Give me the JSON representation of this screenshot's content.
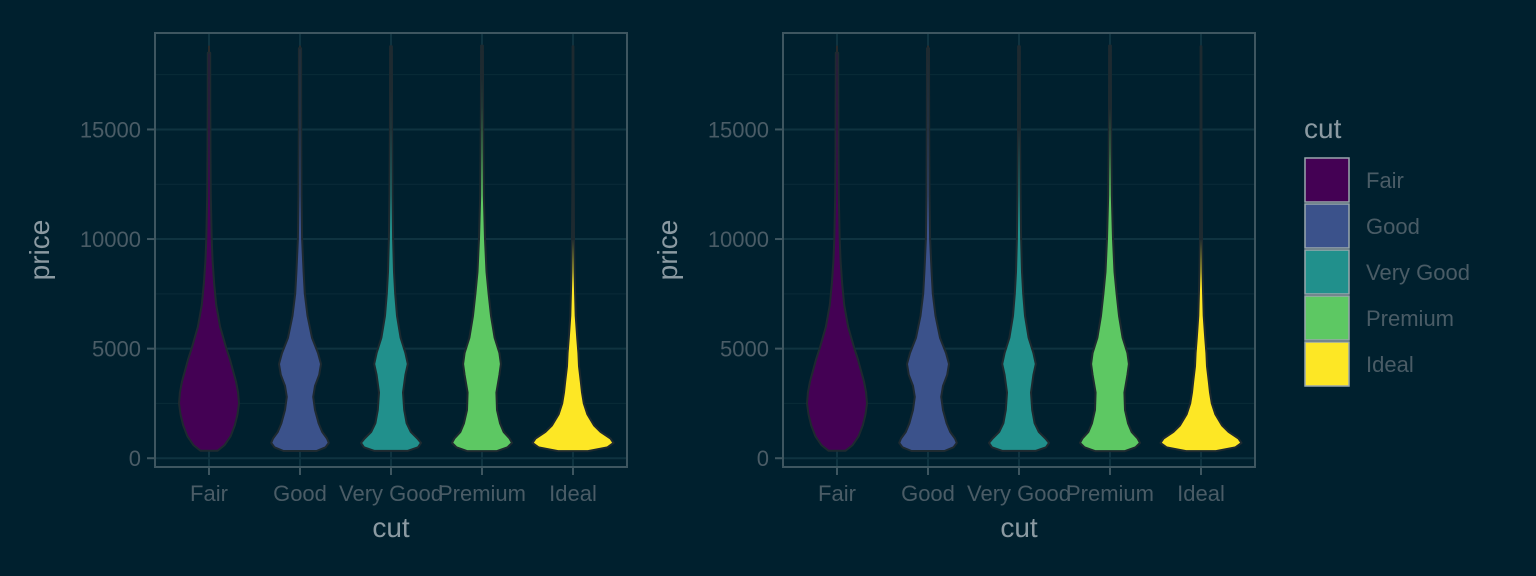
{
  "chart_data": [
    {
      "type": "violin",
      "xlabel": "cut",
      "ylabel": "price",
      "categories": [
        "Fair",
        "Good",
        "Very Good",
        "Premium",
        "Ideal"
      ],
      "colors": [
        "#440154",
        "#3b528b",
        "#21908c",
        "#5dc863",
        "#fde725"
      ],
      "ylim": [
        -400,
        19400
      ],
      "yticks": [
        0,
        5000,
        10000,
        15000
      ],
      "price_range": [
        326,
        18823
      ],
      "grid": true,
      "violins": [
        {
          "category": "Fair",
          "profile": [
            [
              340,
              0.28
            ],
            [
              600,
              0.52
            ],
            [
              1000,
              0.72
            ],
            [
              1500,
              0.86
            ],
            [
              2000,
              0.95
            ],
            [
              2500,
              1.0
            ],
            [
              3000,
              0.97
            ],
            [
              3500,
              0.9
            ],
            [
              4000,
              0.8
            ],
            [
              4500,
              0.7
            ],
            [
              5000,
              0.58
            ],
            [
              6000,
              0.37
            ],
            [
              7000,
              0.24
            ],
            [
              8000,
              0.17
            ],
            [
              9000,
              0.12
            ],
            [
              10000,
              0.09
            ],
            [
              12000,
              0.06
            ],
            [
              14000,
              0.05
            ],
            [
              16000,
              0.045
            ],
            [
              18500,
              0.04
            ]
          ]
        },
        {
          "category": "Good",
          "profile": [
            [
              330,
              0.55
            ],
            [
              500,
              0.85
            ],
            [
              700,
              0.96
            ],
            [
              900,
              0.9
            ],
            [
              1200,
              0.74
            ],
            [
              1600,
              0.62
            ],
            [
              2200,
              0.5
            ],
            [
              2800,
              0.44
            ],
            [
              3300,
              0.5
            ],
            [
              3800,
              0.64
            ],
            [
              4300,
              0.7
            ],
            [
              4800,
              0.6
            ],
            [
              5500,
              0.4
            ],
            [
              6500,
              0.25
            ],
            [
              7500,
              0.16
            ],
            [
              8500,
              0.12
            ],
            [
              10000,
              0.07
            ],
            [
              12000,
              0.05
            ],
            [
              15000,
              0.04
            ],
            [
              18700,
              0.035
            ]
          ]
        },
        {
          "category": "Very Good",
          "profile": [
            [
              336,
              0.55
            ],
            [
              500,
              0.9
            ],
            [
              700,
              1.0
            ],
            [
              900,
              0.88
            ],
            [
              1200,
              0.66
            ],
            [
              1600,
              0.52
            ],
            [
              2200,
              0.44
            ],
            [
              3000,
              0.4
            ],
            [
              3800,
              0.48
            ],
            [
              4300,
              0.56
            ],
            [
              4800,
              0.48
            ],
            [
              5500,
              0.32
            ],
            [
              6500,
              0.2
            ],
            [
              7500,
              0.14
            ],
            [
              8500,
              0.1
            ],
            [
              10000,
              0.07
            ],
            [
              12000,
              0.05
            ],
            [
              15000,
              0.035
            ],
            [
              18800,
              0.03
            ]
          ]
        },
        {
          "category": "Premium",
          "profile": [
            [
              326,
              0.5
            ],
            [
              500,
              0.85
            ],
            [
              700,
              1.0
            ],
            [
              900,
              0.92
            ],
            [
              1200,
              0.72
            ],
            [
              1600,
              0.6
            ],
            [
              2200,
              0.5
            ],
            [
              3000,
              0.48
            ],
            [
              3800,
              0.58
            ],
            [
              4300,
              0.63
            ],
            [
              4800,
              0.58
            ],
            [
              5500,
              0.42
            ],
            [
              6500,
              0.3
            ],
            [
              7500,
              0.22
            ],
            [
              8500,
              0.15
            ],
            [
              10000,
              0.1
            ],
            [
              12000,
              0.06
            ],
            [
              14000,
              0.045
            ],
            [
              16000,
              0.035
            ],
            [
              18823,
              0.03
            ]
          ]
        },
        {
          "category": "Ideal",
          "profile": [
            [
              326,
              0.5
            ],
            [
              500,
              1.15
            ],
            [
              700,
              1.35
            ],
            [
              900,
              1.25
            ],
            [
              1200,
              0.92
            ],
            [
              1500,
              0.7
            ],
            [
              2000,
              0.48
            ],
            [
              2500,
              0.36
            ],
            [
              3000,
              0.3
            ],
            [
              3500,
              0.26
            ],
            [
              4200,
              0.2
            ],
            [
              4800,
              0.18
            ],
            [
              5500,
              0.14
            ],
            [
              6500,
              0.09
            ],
            [
              7500,
              0.07
            ],
            [
              8500,
              0.05
            ],
            [
              10000,
              0.035
            ],
            [
              12000,
              0.025
            ],
            [
              15000,
              0.015
            ],
            [
              18800,
              0.012
            ]
          ]
        }
      ]
    },
    {
      "type": "violin",
      "xlabel": "cut",
      "ylabel": "price",
      "categories": [
        "Fair",
        "Good",
        "Very Good",
        "Premium",
        "Ideal"
      ],
      "colors": [
        "#440154",
        "#3b528b",
        "#21908c",
        "#5dc863",
        "#fde725"
      ],
      "ylim": [
        -400,
        19400
      ],
      "yticks": [
        0,
        5000,
        10000,
        15000
      ],
      "price_range": [
        326,
        18823
      ],
      "grid": true,
      "violins": [
        {
          "category": "Fair",
          "profile": [
            [
              340,
              0.28
            ],
            [
              600,
              0.52
            ],
            [
              1000,
              0.72
            ],
            [
              1500,
              0.86
            ],
            [
              2000,
              0.95
            ],
            [
              2500,
              1.0
            ],
            [
              3000,
              0.97
            ],
            [
              3500,
              0.9
            ],
            [
              4000,
              0.8
            ],
            [
              4500,
              0.7
            ],
            [
              5000,
              0.58
            ],
            [
              6000,
              0.37
            ],
            [
              7000,
              0.24
            ],
            [
              8000,
              0.17
            ],
            [
              9000,
              0.12
            ],
            [
              10000,
              0.09
            ],
            [
              12000,
              0.06
            ],
            [
              14000,
              0.05
            ],
            [
              16000,
              0.045
            ],
            [
              18500,
              0.04
            ]
          ]
        },
        {
          "category": "Good",
          "profile": [
            [
              330,
              0.55
            ],
            [
              500,
              0.85
            ],
            [
              700,
              0.96
            ],
            [
              900,
              0.9
            ],
            [
              1200,
              0.74
            ],
            [
              1600,
              0.62
            ],
            [
              2200,
              0.5
            ],
            [
              2800,
              0.44
            ],
            [
              3300,
              0.5
            ],
            [
              3800,
              0.64
            ],
            [
              4300,
              0.7
            ],
            [
              4800,
              0.6
            ],
            [
              5500,
              0.4
            ],
            [
              6500,
              0.25
            ],
            [
              7500,
              0.16
            ],
            [
              8500,
              0.12
            ],
            [
              10000,
              0.07
            ],
            [
              12000,
              0.05
            ],
            [
              15000,
              0.04
            ],
            [
              18700,
              0.035
            ]
          ]
        },
        {
          "category": "Very Good",
          "profile": [
            [
              336,
              0.55
            ],
            [
              500,
              0.9
            ],
            [
              700,
              1.0
            ],
            [
              900,
              0.88
            ],
            [
              1200,
              0.66
            ],
            [
              1600,
              0.52
            ],
            [
              2200,
              0.44
            ],
            [
              3000,
              0.4
            ],
            [
              3800,
              0.48
            ],
            [
              4300,
              0.56
            ],
            [
              4800,
              0.48
            ],
            [
              5500,
              0.32
            ],
            [
              6500,
              0.2
            ],
            [
              7500,
              0.14
            ],
            [
              8500,
              0.1
            ],
            [
              10000,
              0.07
            ],
            [
              12000,
              0.05
            ],
            [
              15000,
              0.035
            ],
            [
              18800,
              0.03
            ]
          ]
        },
        {
          "category": "Premium",
          "profile": [
            [
              326,
              0.5
            ],
            [
              500,
              0.85
            ],
            [
              700,
              1.0
            ],
            [
              900,
              0.92
            ],
            [
              1200,
              0.72
            ],
            [
              1600,
              0.6
            ],
            [
              2200,
              0.5
            ],
            [
              3000,
              0.48
            ],
            [
              3800,
              0.58
            ],
            [
              4300,
              0.63
            ],
            [
              4800,
              0.58
            ],
            [
              5500,
              0.42
            ],
            [
              6500,
              0.3
            ],
            [
              7500,
              0.22
            ],
            [
              8500,
              0.15
            ],
            [
              10000,
              0.1
            ],
            [
              12000,
              0.06
            ],
            [
              14000,
              0.045
            ],
            [
              16000,
              0.035
            ],
            [
              18823,
              0.03
            ]
          ]
        },
        {
          "category": "Ideal",
          "profile": [
            [
              326,
              0.5
            ],
            [
              500,
              1.15
            ],
            [
              700,
              1.35
            ],
            [
              900,
              1.25
            ],
            [
              1200,
              0.92
            ],
            [
              1500,
              0.7
            ],
            [
              2000,
              0.48
            ],
            [
              2500,
              0.36
            ],
            [
              3000,
              0.3
            ],
            [
              3500,
              0.26
            ],
            [
              4200,
              0.2
            ],
            [
              4800,
              0.18
            ],
            [
              5500,
              0.14
            ],
            [
              6500,
              0.09
            ],
            [
              7500,
              0.07
            ],
            [
              8500,
              0.05
            ],
            [
              10000,
              0.035
            ],
            [
              12000,
              0.025
            ],
            [
              15000,
              0.015
            ],
            [
              18800,
              0.012
            ]
          ]
        }
      ]
    }
  ],
  "legend": {
    "title": "cut",
    "position": "right",
    "items": [
      {
        "label": "Fair",
        "color": "#440154"
      },
      {
        "label": "Good",
        "color": "#3b528b"
      },
      {
        "label": "Very Good",
        "color": "#21908c"
      },
      {
        "label": "Premium",
        "color": "#5dc863"
      },
      {
        "label": "Ideal",
        "color": "#fde725"
      }
    ]
  },
  "theme": {
    "background": "#00202e",
    "panel_border": "#3e5660",
    "grid_major": "#0f3340",
    "grid_minor": "#0a2b38",
    "violin_outline": "#1e2a30",
    "whisker": "#2a2a2a"
  }
}
